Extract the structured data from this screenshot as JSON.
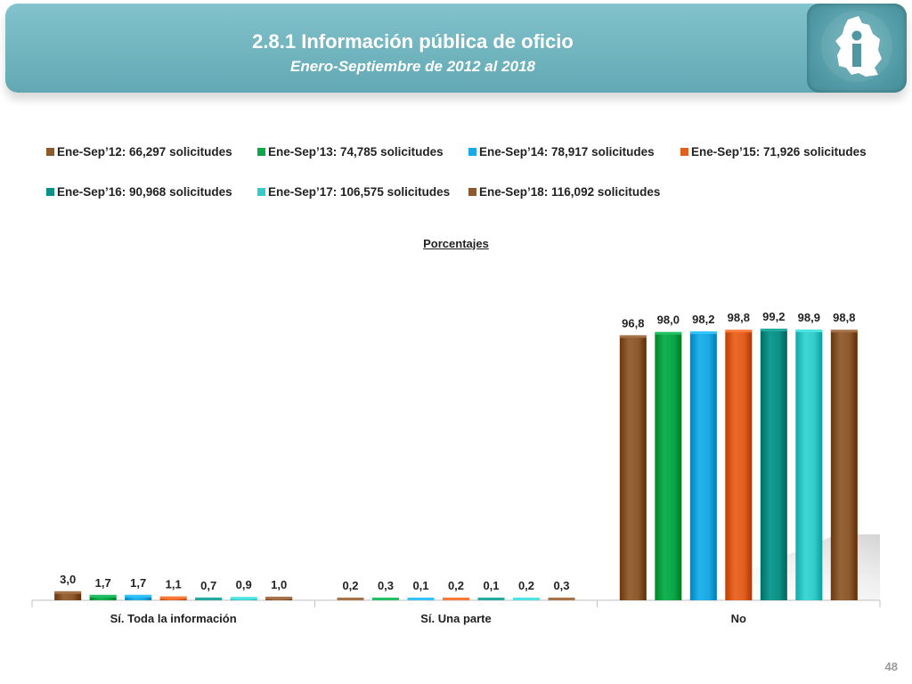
{
  "header": {
    "title": "2.8.1 Información pública de oficio",
    "subtitle": "Enero-Septiembre de 2012 al 2018",
    "logo_icon": "cdmx-map-info-icon"
  },
  "page_number": "48",
  "chart_data": {
    "type": "bar",
    "title": "Porcentajes",
    "categories": [
      "Sí. Toda la información",
      "Sí. Una parte",
      "No"
    ],
    "series": [
      {
        "name": "Ene-Sep’12: 66,297 solicitudes",
        "color": "#8c5a2e",
        "values": [
          3.0,
          0.2,
          96.8
        ],
        "labels": [
          "3,0",
          "0,2",
          "96,8"
        ]
      },
      {
        "name": "Ene-Sep’13: 74,785 solicitudes",
        "color": "#0aa84a",
        "values": [
          1.7,
          0.3,
          98.0
        ],
        "labels": [
          "1,7",
          "0,3",
          "98,0"
        ]
      },
      {
        "name": "Ene-Sep’14: 78,917 solicitudes",
        "color": "#1ba9e4",
        "values": [
          1.7,
          0.1,
          98.2
        ],
        "labels": [
          "1,7",
          "0,1",
          "98,2"
        ]
      },
      {
        "name": "Ene-Sep’15: 71,926 solicitudes",
        "color": "#e2601f",
        "values": [
          1.1,
          0.2,
          98.8
        ],
        "labels": [
          "1,1",
          "0,2",
          "98,8"
        ]
      },
      {
        "name": "Ene-Sep’16: 90,968 solicitudes",
        "color": "#0b9187",
        "values": [
          0.7,
          0.1,
          99.2
        ],
        "labels": [
          "0,7",
          "0,1",
          "99,2"
        ]
      },
      {
        "name": "Ene-Sep’17: 106,575 solicitudes",
        "color": "#33cccb",
        "values": [
          0.9,
          0.2,
          98.9
        ],
        "labels": [
          "0,9",
          "0,2",
          "98,9"
        ]
      },
      {
        "name": "Ene-Sep’18: 116,092 solicitudes",
        "color": "#8c5a2e",
        "values": [
          1.0,
          0.3,
          98.8
        ],
        "labels": [
          "1,0",
          "0,3",
          "98,8"
        ]
      }
    ],
    "ylim": [
      0,
      100
    ],
    "grid": false,
    "legend_position": "top"
  }
}
